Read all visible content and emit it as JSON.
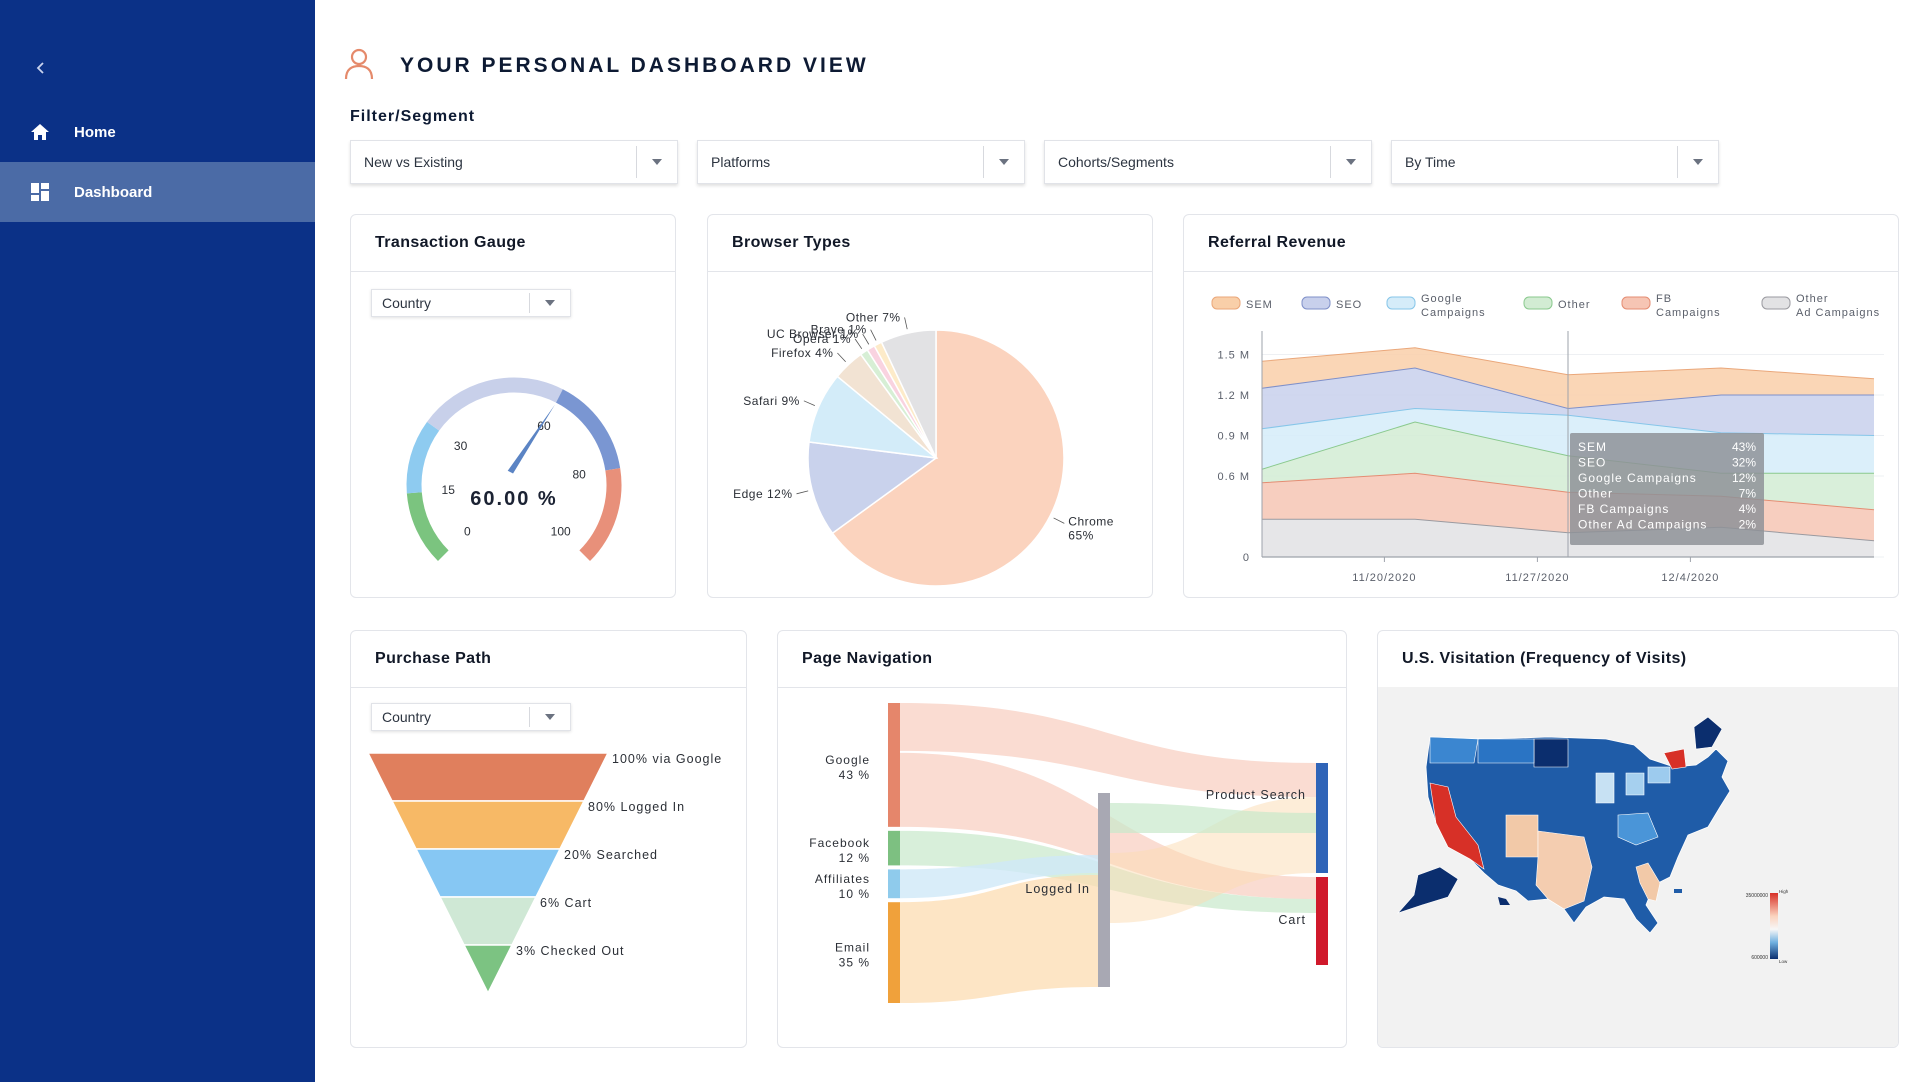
{
  "sidebar": {
    "collapse_icon": "chevron-left-icon",
    "items": [
      {
        "label": "Home",
        "icon": "home-icon",
        "active": false
      },
      {
        "label": "Dashboard",
        "icon": "dashboard-grid-icon",
        "active": true
      }
    ]
  },
  "header": {
    "title": "YOUR PERSONAL DASHBOARD VIEW",
    "title_icon": "user-icon",
    "filter_label": "Filter/Segment"
  },
  "filters": [
    {
      "value": "New vs Existing"
    },
    {
      "value": "Platforms"
    },
    {
      "value": "Cohorts/Segments"
    },
    {
      "value": "By Time"
    }
  ],
  "cards": {
    "gauge": {
      "title": "Transaction Gauge",
      "dropdown_value": "Country"
    },
    "browsers": {
      "title": "Browser Types"
    },
    "referral": {
      "title": "Referral Revenue"
    },
    "purchase": {
      "title": "Purchase Path",
      "dropdown_value": "Country"
    },
    "navigation": {
      "title": "Page Navigation"
    },
    "map": {
      "title": "U.S. Visitation (Frequency of Visits)",
      "legend_high": "High",
      "legend_low": "Low",
      "legend_max": "35000000",
      "legend_min": "600000"
    }
  },
  "chart_data": [
    {
      "type": "gauge",
      "title": "Transaction Gauge",
      "value": 60,
      "value_label": "60.00 %",
      "ticks": [
        "0",
        "15",
        "30",
        "60",
        "80",
        "100"
      ],
      "tick_values": [
        0,
        15,
        30,
        60,
        80,
        100
      ],
      "bands": [
        {
          "from": 0,
          "to": 15,
          "color": "#7bc47f"
        },
        {
          "from": 15,
          "to": 30,
          "color": "#8ecbf0"
        },
        {
          "from": 30,
          "to": 60,
          "color": "#c8d0ea"
        },
        {
          "from": 60,
          "to": 80,
          "color": "#7a96d2"
        },
        {
          "from": 80,
          "to": 100,
          "color": "#e8907a"
        }
      ]
    },
    {
      "type": "pie",
      "title": "Browser Types",
      "slices": [
        {
          "label": "Chrome",
          "value": 65,
          "text": "Chrome",
          "pct": "65%",
          "color": "#fbd3be"
        },
        {
          "label": "Edge",
          "value": 12,
          "text": "Edge 12%",
          "color": "#c9d2ec"
        },
        {
          "label": "Safari",
          "value": 9,
          "text": "Safari 9%",
          "color": "#d3ecf9"
        },
        {
          "label": "Firefox",
          "value": 4,
          "text": "Firefox 4%",
          "color": "#f2e3d3"
        },
        {
          "label": "Opera",
          "value": 1,
          "text": "Opera 1%",
          "color": "#d7efd5"
        },
        {
          "label": "UC Browser",
          "value": 1,
          "text": "UC Browser 1%",
          "color": "#f9d3e0"
        },
        {
          "label": "Brave",
          "value": 1,
          "text": "Brave 1%",
          "color": "#fdebc9"
        },
        {
          "label": "Other",
          "value": 7,
          "text": "Other 7%",
          "color": "#e2e2e4"
        }
      ]
    },
    {
      "type": "area",
      "title": "Referral Revenue",
      "legend": [
        {
          "name": "SEM",
          "color": "#f9cfa9",
          "stroke": "#eaa77a"
        },
        {
          "name": "SEO",
          "color": "#c8d0ec",
          "stroke": "#7f90c9"
        },
        {
          "name": "Google Campaigns",
          "color": "#d5ecf9",
          "stroke": "#86c6e9"
        },
        {
          "name": "Other",
          "color": "#d2ecd3",
          "stroke": "#8ac98e"
        },
        {
          "name": "FB Campaigns",
          "color": "#f6c5b4",
          "stroke": "#e48d73"
        },
        {
          "name": "Other Ad Campaigns",
          "color": "#e2e2e4",
          "stroke": "#9a9aa0"
        }
      ],
      "x": [
        0,
        1,
        2,
        3,
        4
      ],
      "x_ticks": [
        {
          "pos": 0.8,
          "label": "11/20/2020"
        },
        {
          "pos": 1.8,
          "label": "11/27/2020"
        },
        {
          "pos": 2.8,
          "label": "12/4/2020"
        }
      ],
      "y_ticks": [
        "0",
        "0.6 M",
        "0.9 M",
        "1.2 M",
        "1.5 M"
      ],
      "y_tick_values": [
        0,
        0.6,
        0.9,
        1.2,
        1.5
      ],
      "ylim": [
        0,
        1.6
      ],
      "stack_tops": {
        "Other Ad Campaigns": [
          0.28,
          0.28,
          0.18,
          0.22,
          0.12
        ],
        "FB Campaigns": [
          0.55,
          0.62,
          0.48,
          0.45,
          0.35
        ],
        "Other": [
          0.65,
          1.0,
          0.75,
          0.62,
          0.62
        ],
        "Google Campaigns": [
          0.95,
          1.1,
          1.05,
          0.92,
          0.9
        ],
        "SEO": [
          1.25,
          1.4,
          1.1,
          1.2,
          1.2
        ],
        "SEM": [
          1.45,
          1.55,
          1.35,
          1.4,
          1.32
        ]
      },
      "tooltip": {
        "rows": [
          {
            "name": "SEM",
            "value": "43%"
          },
          {
            "name": "SEO",
            "value": "32%"
          },
          {
            "name": "Google Campaigns",
            "value": "12%"
          },
          {
            "name": "Other",
            "value": "7%"
          },
          {
            "name": "FB Campaigns",
            "value": "4%"
          },
          {
            "name": "Other Ad Campaigns",
            "value": "2%"
          }
        ]
      }
    },
    {
      "type": "funnel",
      "title": "Purchase Path",
      "stages": [
        {
          "label": "100% via Google",
          "value": 100,
          "color": "#e07f5d"
        },
        {
          "label": "80% Logged In",
          "value": 80,
          "color": "#f7b966"
        },
        {
          "label": "20% Searched",
          "value": 20,
          "color": "#86c7f3"
        },
        {
          "label": "6% Cart",
          "value": 6,
          "color": "#cfe8d5"
        },
        {
          "label": "3% Checked Out",
          "value": 3,
          "color": "#7cc382"
        }
      ]
    },
    {
      "type": "sankey",
      "title": "Page Navigation",
      "sources": [
        {
          "name": "Google",
          "pct_label": "43 %",
          "value": 43,
          "color": "#e5866b"
        },
        {
          "name": "Facebook",
          "pct_label": "12 %",
          "value": 12,
          "color": "#7dc081"
        },
        {
          "name": "Affiliates",
          "pct_label": "10 %",
          "value": 10,
          "color": "#8fcbec"
        },
        {
          "name": "Email",
          "pct_label": "35 %",
          "value": 35,
          "color": "#f0a13b"
        }
      ],
      "middle": {
        "name": "Logged In",
        "color": "#a8a8b3"
      },
      "targets": [
        {
          "name": "Product Search",
          "color": "#2f64b8"
        },
        {
          "name": "Cart",
          "color": "#d0192b"
        }
      ]
    }
  ]
}
